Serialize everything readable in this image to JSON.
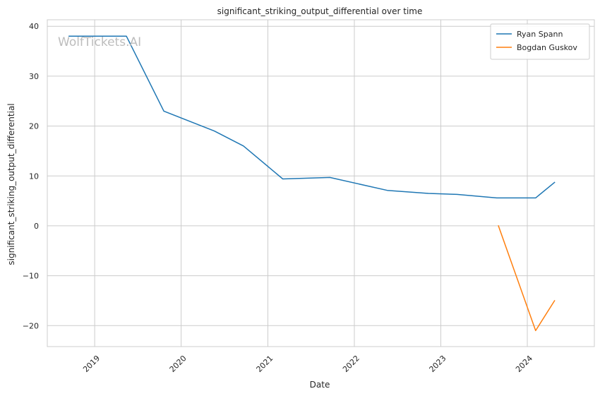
{
  "chart_data": {
    "type": "line",
    "title": "significant_striking_output_differential over time",
    "xlabel": "Date",
    "ylabel": "significant_striking_output_differential",
    "watermark": "WolfTickets.AI",
    "x_ticks": [
      "2019",
      "2020",
      "2021",
      "2022",
      "2023",
      "2024"
    ],
    "y_ticks": [
      40,
      30,
      20,
      10,
      0,
      -10,
      -20
    ],
    "xlim": [
      "2018-06-15",
      "2024-10-10"
    ],
    "ylim": [
      -24.2,
      41.3
    ],
    "grid": true,
    "legend_position": "top-right",
    "series": [
      {
        "name": "Ryan Spann",
        "color": "#1f77b4",
        "points": [
          {
            "x": "2018-09-15",
            "y": 38
          },
          {
            "x": "2019-05-15",
            "y": 38
          },
          {
            "x": "2019-10-20",
            "y": 23
          },
          {
            "x": "2020-05-20",
            "y": 19
          },
          {
            "x": "2020-09-20",
            "y": 16
          },
          {
            "x": "2021-03-05",
            "y": 9.4
          },
          {
            "x": "2021-09-20",
            "y": 9.7
          },
          {
            "x": "2022-05-20",
            "y": 7.1
          },
          {
            "x": "2022-11-10",
            "y": 6.5
          },
          {
            "x": "2023-03-10",
            "y": 6.3
          },
          {
            "x": "2023-08-25",
            "y": 5.6
          },
          {
            "x": "2024-02-05",
            "y": 5.6
          },
          {
            "x": "2024-04-25",
            "y": 8.7
          }
        ]
      },
      {
        "name": "Bogdan Guskov",
        "color": "#ff7f0e",
        "points": [
          {
            "x": "2023-09-01",
            "y": 0
          },
          {
            "x": "2024-02-05",
            "y": -21
          },
          {
            "x": "2024-04-25",
            "y": -15
          }
        ]
      }
    ]
  }
}
